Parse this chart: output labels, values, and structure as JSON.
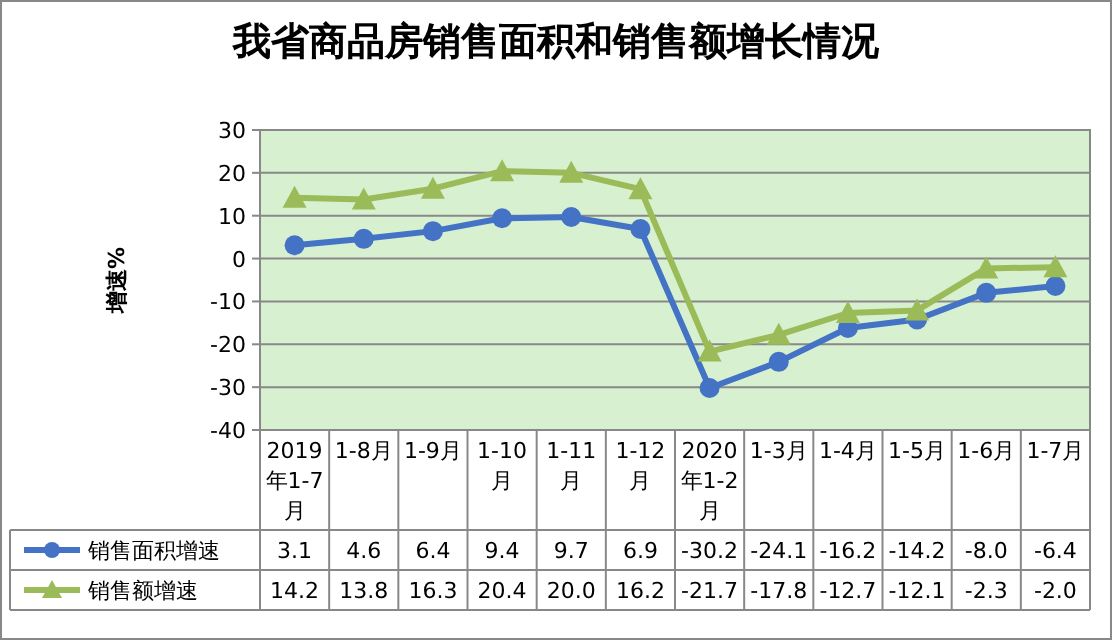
{
  "chart_data": {
    "type": "line",
    "title": "我省商品房销售面积和销售额增长情况",
    "ylabel": "增速%",
    "categories": [
      "2019年1-7月",
      "1-8月",
      "1-9月",
      "1-10月",
      "1-11月",
      "1-12月",
      "2020年1-2月",
      "1-3月",
      "1-4月",
      "1-5月",
      "1-6月",
      "1-7月"
    ],
    "series": [
      {
        "name": "销售面积增速",
        "color": "#4472c4",
        "marker": "circle",
        "values": [
          3.1,
          4.6,
          6.4,
          9.4,
          9.7,
          6.9,
          -30.2,
          -24.1,
          -16.2,
          -14.2,
          -8.0,
          -6.4
        ],
        "value_labels": [
          "3.1",
          "4.6",
          "6.4",
          "9.4",
          "9.7",
          "6.9",
          "-30.2",
          "-24.1",
          "-16.2",
          "-14.2",
          "-8.0",
          "-6.4"
        ]
      },
      {
        "name": "销售额增速",
        "color": "#9bbb59",
        "marker": "triangle",
        "values": [
          14.2,
          13.8,
          16.3,
          20.4,
          20.0,
          16.2,
          -21.7,
          -17.8,
          -12.7,
          -12.1,
          -2.3,
          -2.0
        ],
        "value_labels": [
          "14.2",
          "13.8",
          "16.3",
          "20.4",
          "20.0",
          "16.2",
          "-21.7",
          "-17.8",
          "-12.7",
          "-12.1",
          "-2.3",
          "-2.0"
        ]
      }
    ],
    "ylim": [
      -40,
      30
    ],
    "yticks": [
      -40,
      -30,
      -20,
      -10,
      0,
      10,
      20,
      30
    ],
    "grid": "y",
    "legend": "bottom",
    "line_style": "solid"
  }
}
